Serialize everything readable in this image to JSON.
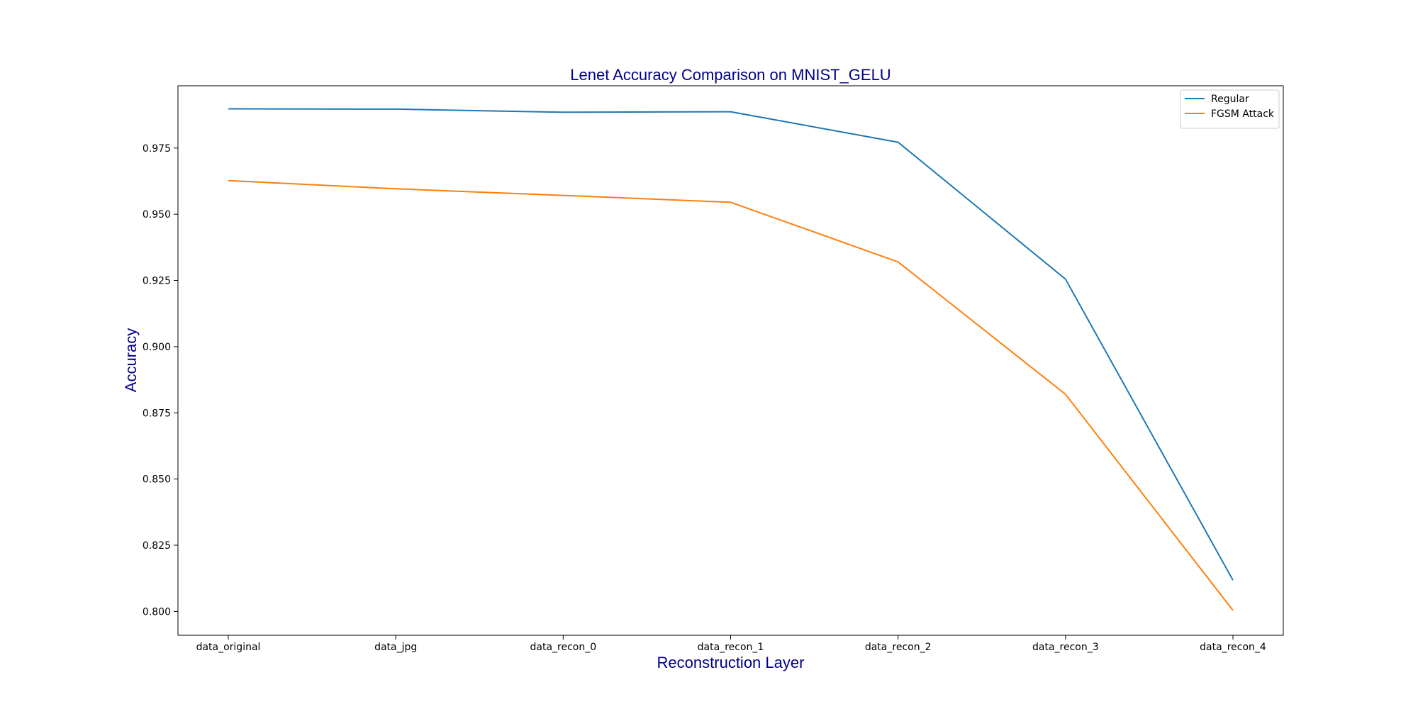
{
  "chart_data": {
    "type": "line",
    "title": "Lenet Accuracy Comparison on MNIST_GELU",
    "xlabel": "Reconstruction Layer",
    "ylabel": "Accuracy",
    "categories": [
      "data_original",
      "data_jpg",
      "data_recon_0",
      "data_recon_1",
      "data_recon_2",
      "data_recon_3",
      "data_recon_4"
    ],
    "series": [
      {
        "name": "Regular",
        "color": "#1f77b4",
        "values": [
          0.9898,
          0.9897,
          0.9885,
          0.9887,
          0.9772,
          0.9255,
          0.8118
        ]
      },
      {
        "name": "FGSM Attack",
        "color": "#ff7f0e",
        "values": [
          0.9627,
          0.9596,
          0.9571,
          0.9545,
          0.932,
          0.882,
          0.8004
        ]
      }
    ],
    "yticks": [
      0.8,
      0.825,
      0.85,
      0.875,
      0.9,
      0.925,
      0.95,
      0.975
    ],
    "ytick_labels": [
      "0.800",
      "0.825",
      "0.850",
      "0.875",
      "0.900",
      "0.925",
      "0.950",
      "0.975"
    ],
    "ylim": [
      0.791,
      0.9985
    ],
    "grid": false,
    "legend_position": "top-right",
    "title_color": "#00008b",
    "label_color": "#00008b"
  }
}
